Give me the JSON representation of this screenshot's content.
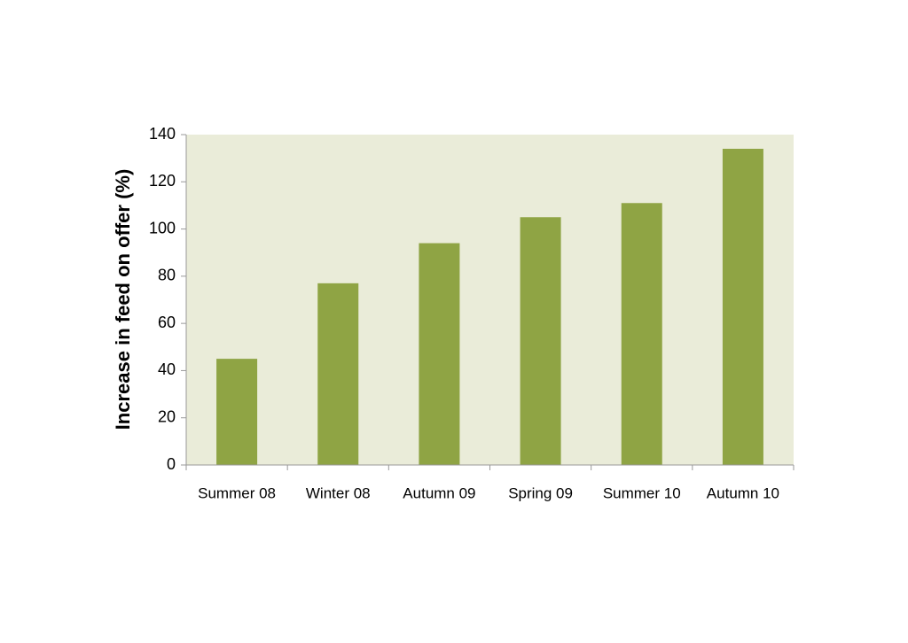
{
  "chart_data": {
    "type": "bar",
    "y_label": "Increase in feed on offer (%)",
    "categories": [
      "Summer 08",
      "Winter 08",
      "Autumn 09",
      "Spring 09",
      "Summer 10",
      "Autumn 10"
    ],
    "values": [
      45,
      77,
      94,
      105,
      111,
      134
    ],
    "color": "#8fa444",
    "plot_background": "#eaecd9",
    "ylim": [
      0,
      140
    ],
    "yticks": [
      0,
      20,
      40,
      60,
      80,
      100,
      120,
      140
    ]
  }
}
